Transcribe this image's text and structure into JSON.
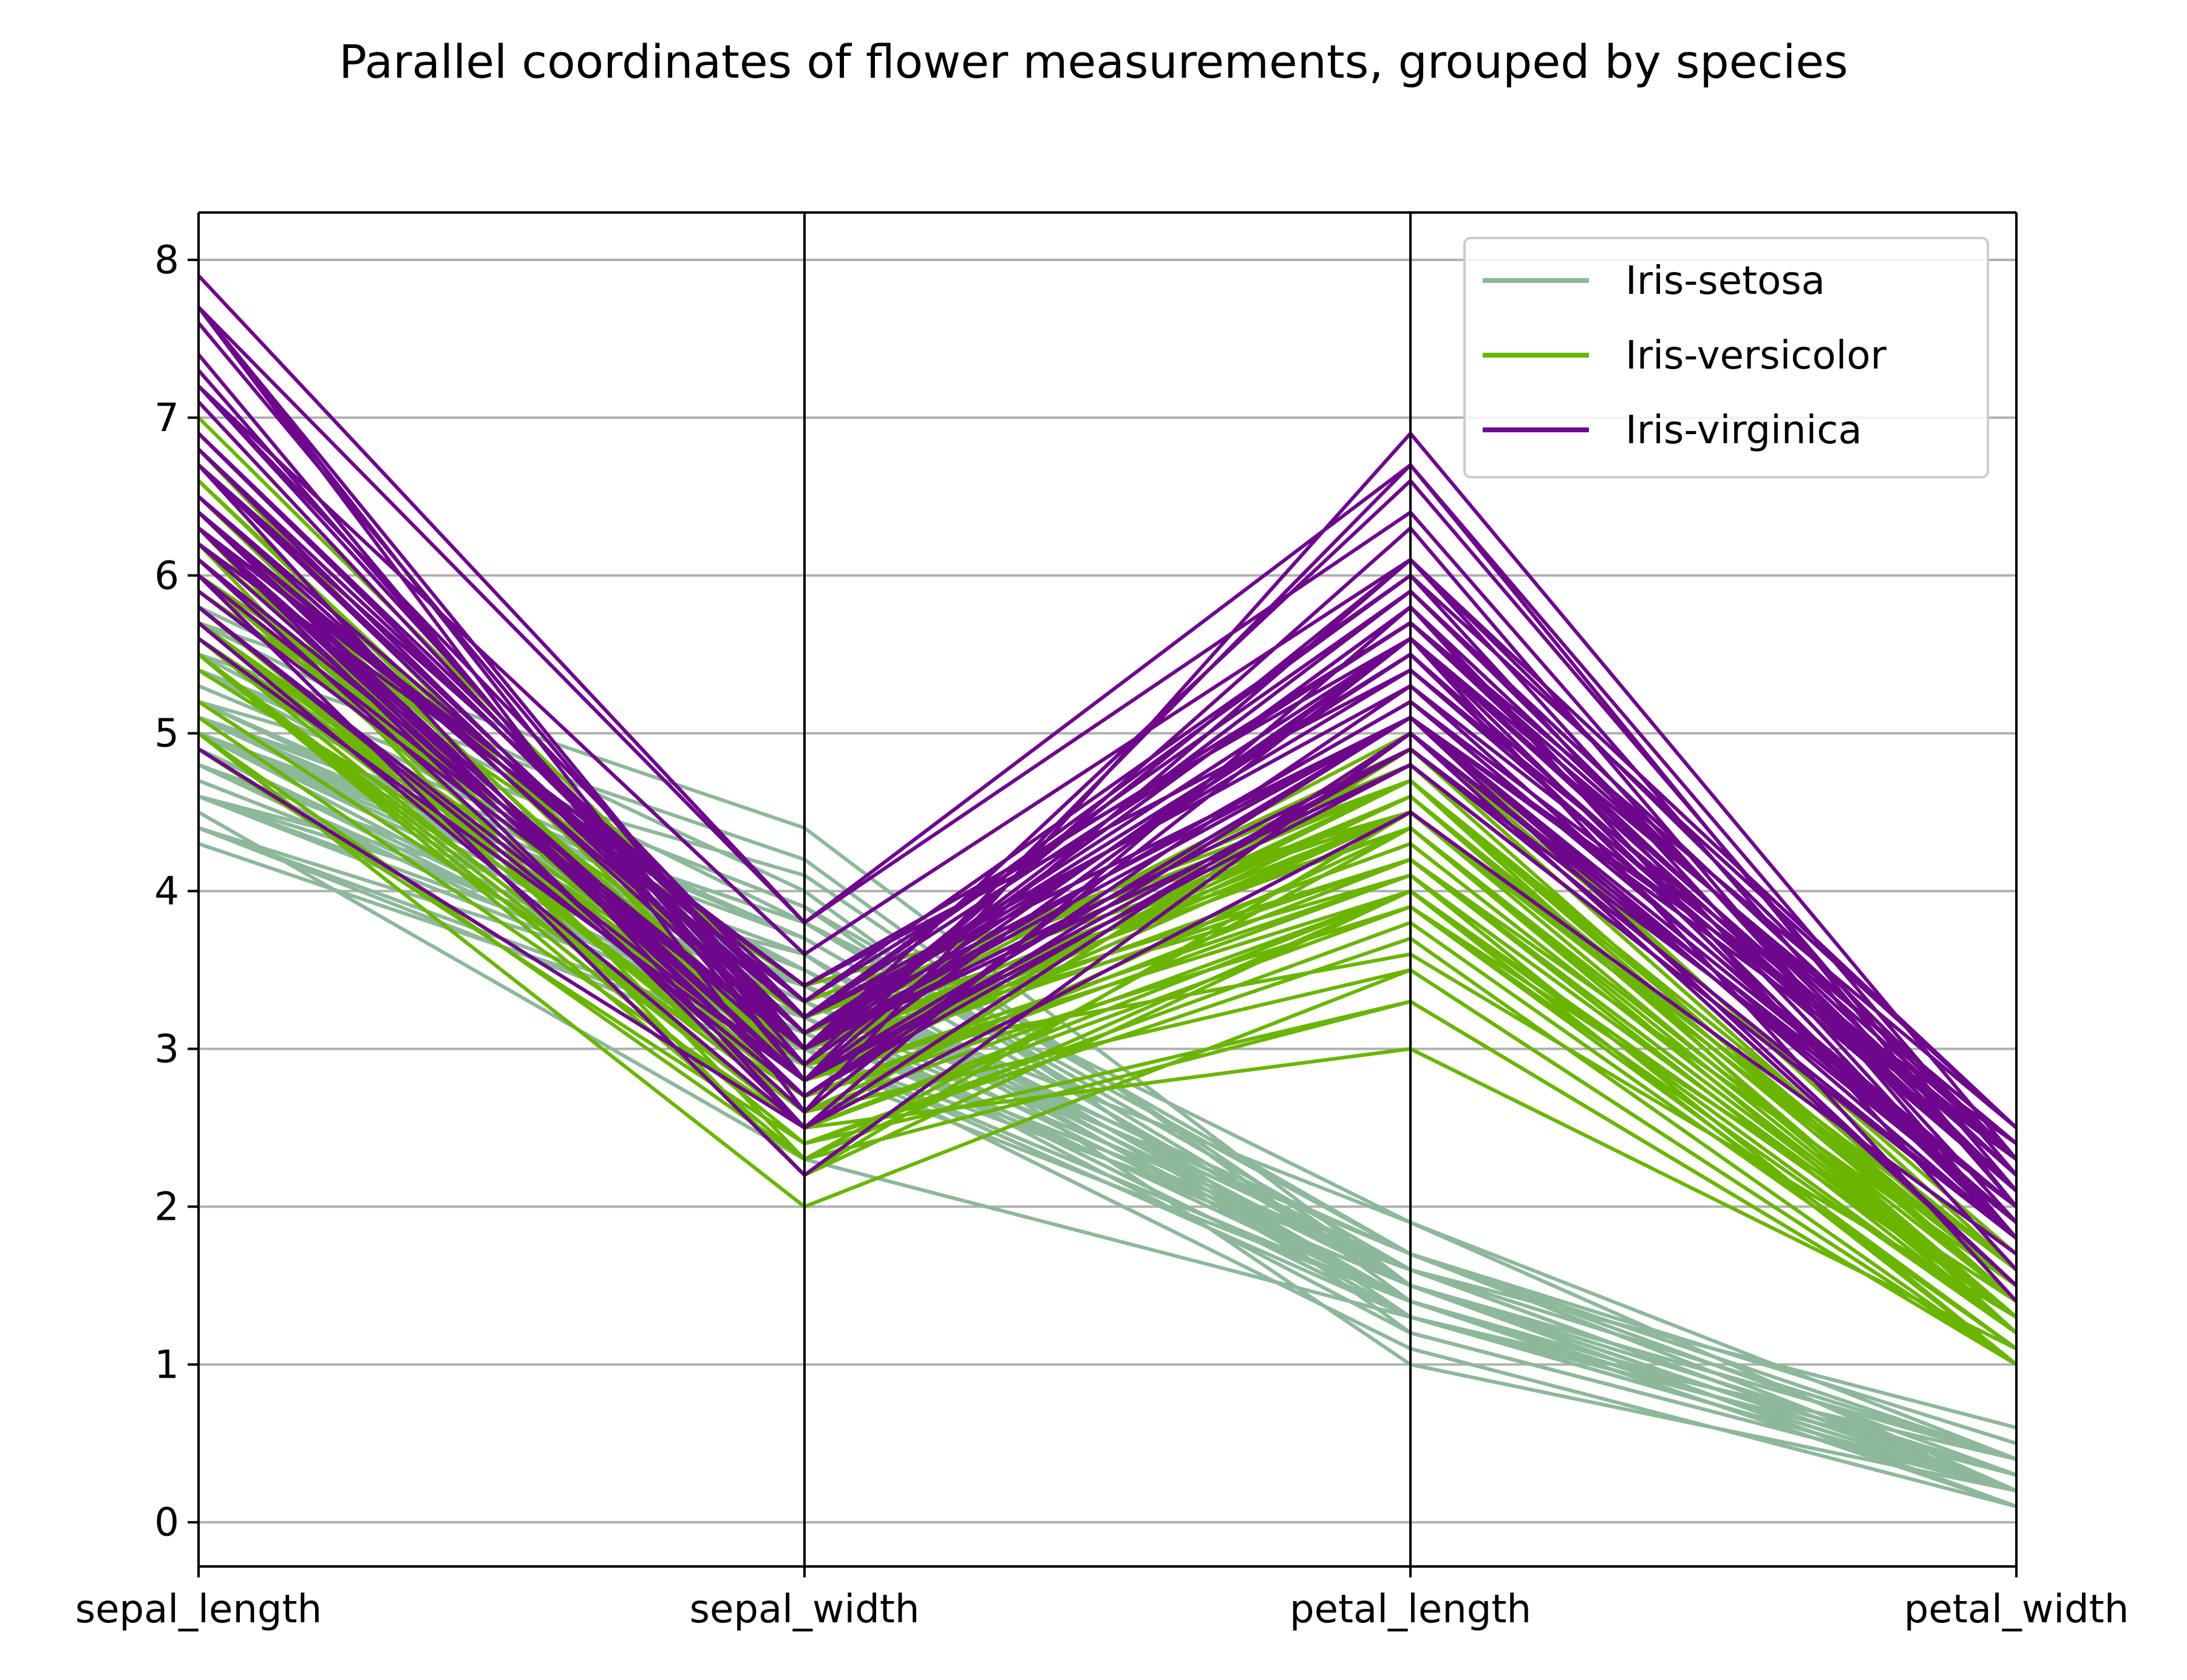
{
  "chart_data": {
    "type": "parallel_coordinates",
    "title": "Parallel coordinates of flower measurements, grouped by species",
    "axes": [
      "sepal_length",
      "sepal_width",
      "petal_length",
      "petal_width"
    ],
    "ylim": [
      -0.28,
      8.3
    ],
    "yticks": [
      0,
      1,
      2,
      3,
      4,
      5,
      6,
      7,
      8
    ],
    "grid": true,
    "legend_position": "top-right",
    "series": [
      {
        "name": "Iris-setosa",
        "color": "#8db89a",
        "lines": [
          [
            5.1,
            3.5,
            1.4,
            0.2
          ],
          [
            4.9,
            3.0,
            1.4,
            0.2
          ],
          [
            4.7,
            3.2,
            1.3,
            0.2
          ],
          [
            4.6,
            3.1,
            1.5,
            0.2
          ],
          [
            5.0,
            3.6,
            1.4,
            0.2
          ],
          [
            5.4,
            3.9,
            1.7,
            0.4
          ],
          [
            4.6,
            3.4,
            1.4,
            0.3
          ],
          [
            5.0,
            3.4,
            1.5,
            0.2
          ],
          [
            4.4,
            2.9,
            1.4,
            0.2
          ],
          [
            4.9,
            3.1,
            1.5,
            0.1
          ],
          [
            5.4,
            3.7,
            1.5,
            0.2
          ],
          [
            4.8,
            3.4,
            1.6,
            0.2
          ],
          [
            4.8,
            3.0,
            1.4,
            0.1
          ],
          [
            4.3,
            3.0,
            1.1,
            0.1
          ],
          [
            5.8,
            4.0,
            1.2,
            0.2
          ],
          [
            5.7,
            4.4,
            1.5,
            0.4
          ],
          [
            5.4,
            3.9,
            1.3,
            0.4
          ],
          [
            5.1,
            3.5,
            1.4,
            0.3
          ],
          [
            5.7,
            3.8,
            1.7,
            0.3
          ],
          [
            5.1,
            3.8,
            1.5,
            0.3
          ],
          [
            5.4,
            3.4,
            1.7,
            0.2
          ],
          [
            5.1,
            3.7,
            1.5,
            0.4
          ],
          [
            4.6,
            3.6,
            1.0,
            0.2
          ],
          [
            5.1,
            3.3,
            1.7,
            0.5
          ],
          [
            4.8,
            3.4,
            1.9,
            0.2
          ],
          [
            5.0,
            3.0,
            1.6,
            0.2
          ],
          [
            5.0,
            3.4,
            1.6,
            0.4
          ],
          [
            5.2,
            3.5,
            1.5,
            0.2
          ],
          [
            5.2,
            3.4,
            1.4,
            0.2
          ],
          [
            4.7,
            3.2,
            1.6,
            0.2
          ],
          [
            4.8,
            3.1,
            1.6,
            0.2
          ],
          [
            5.4,
            3.4,
            1.5,
            0.4
          ],
          [
            5.2,
            4.1,
            1.5,
            0.1
          ],
          [
            5.5,
            4.2,
            1.4,
            0.2
          ],
          [
            4.9,
            3.1,
            1.5,
            0.1
          ],
          [
            5.0,
            3.2,
            1.2,
            0.2
          ],
          [
            5.5,
            3.5,
            1.3,
            0.2
          ],
          [
            4.9,
            3.1,
            1.5,
            0.1
          ],
          [
            4.4,
            3.0,
            1.3,
            0.2
          ],
          [
            5.1,
            3.4,
            1.5,
            0.2
          ],
          [
            5.0,
            3.5,
            1.3,
            0.3
          ],
          [
            4.5,
            2.3,
            1.3,
            0.3
          ],
          [
            4.4,
            3.2,
            1.3,
            0.2
          ],
          [
            5.0,
            3.5,
            1.6,
            0.6
          ],
          [
            5.1,
            3.8,
            1.9,
            0.4
          ],
          [
            4.8,
            3.0,
            1.4,
            0.3
          ],
          [
            5.1,
            3.8,
            1.6,
            0.2
          ],
          [
            4.6,
            3.2,
            1.4,
            0.2
          ],
          [
            5.3,
            3.7,
            1.5,
            0.2
          ],
          [
            5.0,
            3.3,
            1.4,
            0.2
          ]
        ]
      },
      {
        "name": "Iris-versicolor",
        "color": "#6ab500",
        "lines": [
          [
            7.0,
            3.2,
            4.7,
            1.4
          ],
          [
            6.4,
            3.2,
            4.5,
            1.5
          ],
          [
            6.9,
            3.1,
            4.9,
            1.5
          ],
          [
            5.5,
            2.3,
            4.0,
            1.3
          ],
          [
            6.5,
            2.8,
            4.6,
            1.5
          ],
          [
            5.7,
            2.8,
            4.5,
            1.3
          ],
          [
            6.3,
            3.3,
            4.7,
            1.6
          ],
          [
            4.9,
            2.4,
            3.3,
            1.0
          ],
          [
            6.6,
            2.9,
            4.6,
            1.3
          ],
          [
            5.2,
            2.7,
            3.9,
            1.4
          ],
          [
            5.0,
            2.0,
            3.5,
            1.0
          ],
          [
            5.9,
            3.0,
            4.2,
            1.5
          ],
          [
            6.0,
            2.2,
            4.0,
            1.0
          ],
          [
            6.1,
            2.9,
            4.7,
            1.4
          ],
          [
            5.6,
            2.9,
            3.6,
            1.3
          ],
          [
            6.7,
            3.1,
            4.4,
            1.4
          ],
          [
            5.6,
            3.0,
            4.5,
            1.5
          ],
          [
            5.8,
            2.7,
            4.1,
            1.0
          ],
          [
            6.2,
            2.2,
            4.5,
            1.5
          ],
          [
            5.6,
            2.5,
            3.9,
            1.1
          ],
          [
            5.9,
            3.2,
            4.8,
            1.8
          ],
          [
            6.1,
            2.8,
            4.0,
            1.3
          ],
          [
            6.3,
            2.5,
            4.9,
            1.5
          ],
          [
            6.1,
            2.8,
            4.7,
            1.2
          ],
          [
            6.4,
            2.9,
            4.3,
            1.3
          ],
          [
            6.6,
            3.0,
            4.4,
            1.4
          ],
          [
            6.8,
            2.8,
            4.8,
            1.4
          ],
          [
            6.7,
            3.0,
            5.0,
            1.7
          ],
          [
            6.0,
            2.9,
            4.5,
            1.5
          ],
          [
            5.7,
            2.6,
            3.5,
            1.0
          ],
          [
            5.5,
            2.4,
            3.8,
            1.1
          ],
          [
            5.5,
            2.4,
            3.7,
            1.0
          ],
          [
            5.8,
            2.7,
            3.9,
            1.2
          ],
          [
            6.0,
            2.7,
            5.1,
            1.6
          ],
          [
            5.4,
            3.0,
            4.5,
            1.5
          ],
          [
            6.0,
            3.4,
            4.5,
            1.6
          ],
          [
            6.7,
            3.1,
            4.7,
            1.5
          ],
          [
            6.3,
            2.3,
            4.4,
            1.3
          ],
          [
            5.6,
            3.0,
            4.1,
            1.3
          ],
          [
            5.5,
            2.5,
            4.0,
            1.3
          ],
          [
            5.5,
            2.6,
            4.4,
            1.2
          ],
          [
            6.1,
            3.0,
            4.6,
            1.4
          ],
          [
            5.8,
            2.6,
            4.0,
            1.2
          ],
          [
            5.0,
            2.3,
            3.3,
            1.0
          ],
          [
            5.6,
            2.7,
            4.2,
            1.3
          ],
          [
            5.7,
            3.0,
            4.2,
            1.2
          ],
          [
            5.7,
            2.9,
            4.2,
            1.3
          ],
          [
            6.2,
            2.9,
            4.3,
            1.3
          ],
          [
            5.1,
            2.5,
            3.0,
            1.1
          ],
          [
            5.7,
            2.8,
            4.1,
            1.3
          ]
        ]
      },
      {
        "name": "Iris-virginica",
        "color": "#6e078c",
        "lines": [
          [
            6.3,
            3.3,
            6.0,
            2.5
          ],
          [
            5.8,
            2.7,
            5.1,
            1.9
          ],
          [
            7.1,
            3.0,
            5.9,
            2.1
          ],
          [
            6.3,
            2.9,
            5.6,
            1.8
          ],
          [
            6.5,
            3.0,
            5.8,
            2.2
          ],
          [
            7.6,
            3.0,
            6.6,
            2.1
          ],
          [
            4.9,
            2.5,
            4.5,
            1.7
          ],
          [
            7.3,
            2.9,
            6.3,
            1.8
          ],
          [
            6.7,
            2.5,
            5.8,
            1.8
          ],
          [
            7.2,
            3.6,
            6.1,
            2.5
          ],
          [
            6.5,
            3.2,
            5.1,
            2.0
          ],
          [
            6.4,
            2.7,
            5.3,
            1.9
          ],
          [
            6.8,
            3.0,
            5.5,
            2.1
          ],
          [
            5.7,
            2.5,
            5.0,
            2.0
          ],
          [
            5.8,
            2.8,
            5.1,
            2.4
          ],
          [
            6.4,
            3.2,
            5.3,
            2.3
          ],
          [
            6.5,
            3.0,
            5.5,
            1.8
          ],
          [
            7.7,
            3.8,
            6.7,
            2.2
          ],
          [
            7.7,
            2.6,
            6.9,
            2.3
          ],
          [
            6.0,
            2.2,
            5.0,
            1.5
          ],
          [
            6.9,
            3.2,
            5.7,
            2.3
          ],
          [
            5.6,
            2.8,
            4.9,
            2.0
          ],
          [
            7.7,
            2.8,
            6.7,
            2.0
          ],
          [
            6.3,
            2.7,
            4.9,
            1.8
          ],
          [
            6.7,
            3.3,
            5.7,
            2.1
          ],
          [
            7.2,
            3.2,
            6.0,
            1.8
          ],
          [
            6.2,
            2.8,
            4.8,
            1.8
          ],
          [
            6.1,
            3.0,
            4.9,
            1.8
          ],
          [
            6.4,
            2.8,
            5.6,
            2.1
          ],
          [
            7.2,
            3.0,
            5.8,
            1.6
          ],
          [
            7.4,
            2.8,
            6.1,
            1.9
          ],
          [
            7.9,
            3.8,
            6.4,
            2.0
          ],
          [
            6.4,
            2.8,
            5.6,
            2.2
          ],
          [
            6.3,
            2.8,
            5.1,
            1.5
          ],
          [
            6.1,
            2.6,
            5.6,
            1.4
          ],
          [
            7.7,
            3.0,
            6.1,
            2.3
          ],
          [
            6.3,
            3.4,
            5.6,
            2.4
          ],
          [
            6.4,
            3.1,
            5.5,
            1.8
          ],
          [
            6.0,
            3.0,
            4.8,
            1.8
          ],
          [
            6.9,
            3.1,
            5.4,
            2.1
          ],
          [
            6.7,
            3.1,
            5.6,
            2.4
          ],
          [
            6.9,
            3.1,
            5.1,
            2.3
          ],
          [
            5.8,
            2.7,
            5.1,
            1.9
          ],
          [
            6.8,
            3.2,
            5.9,
            2.3
          ],
          [
            6.7,
            3.3,
            5.7,
            2.5
          ],
          [
            6.7,
            3.0,
            5.2,
            2.3
          ],
          [
            6.3,
            2.5,
            5.0,
            1.9
          ],
          [
            6.5,
            3.0,
            5.2,
            2.0
          ],
          [
            6.2,
            3.4,
            5.4,
            2.3
          ],
          [
            5.9,
            3.0,
            5.1,
            1.8
          ]
        ]
      }
    ]
  },
  "colors": {
    "grid": "#b0b0b0",
    "axis": "#000000",
    "legend_border": "#cccccc"
  }
}
